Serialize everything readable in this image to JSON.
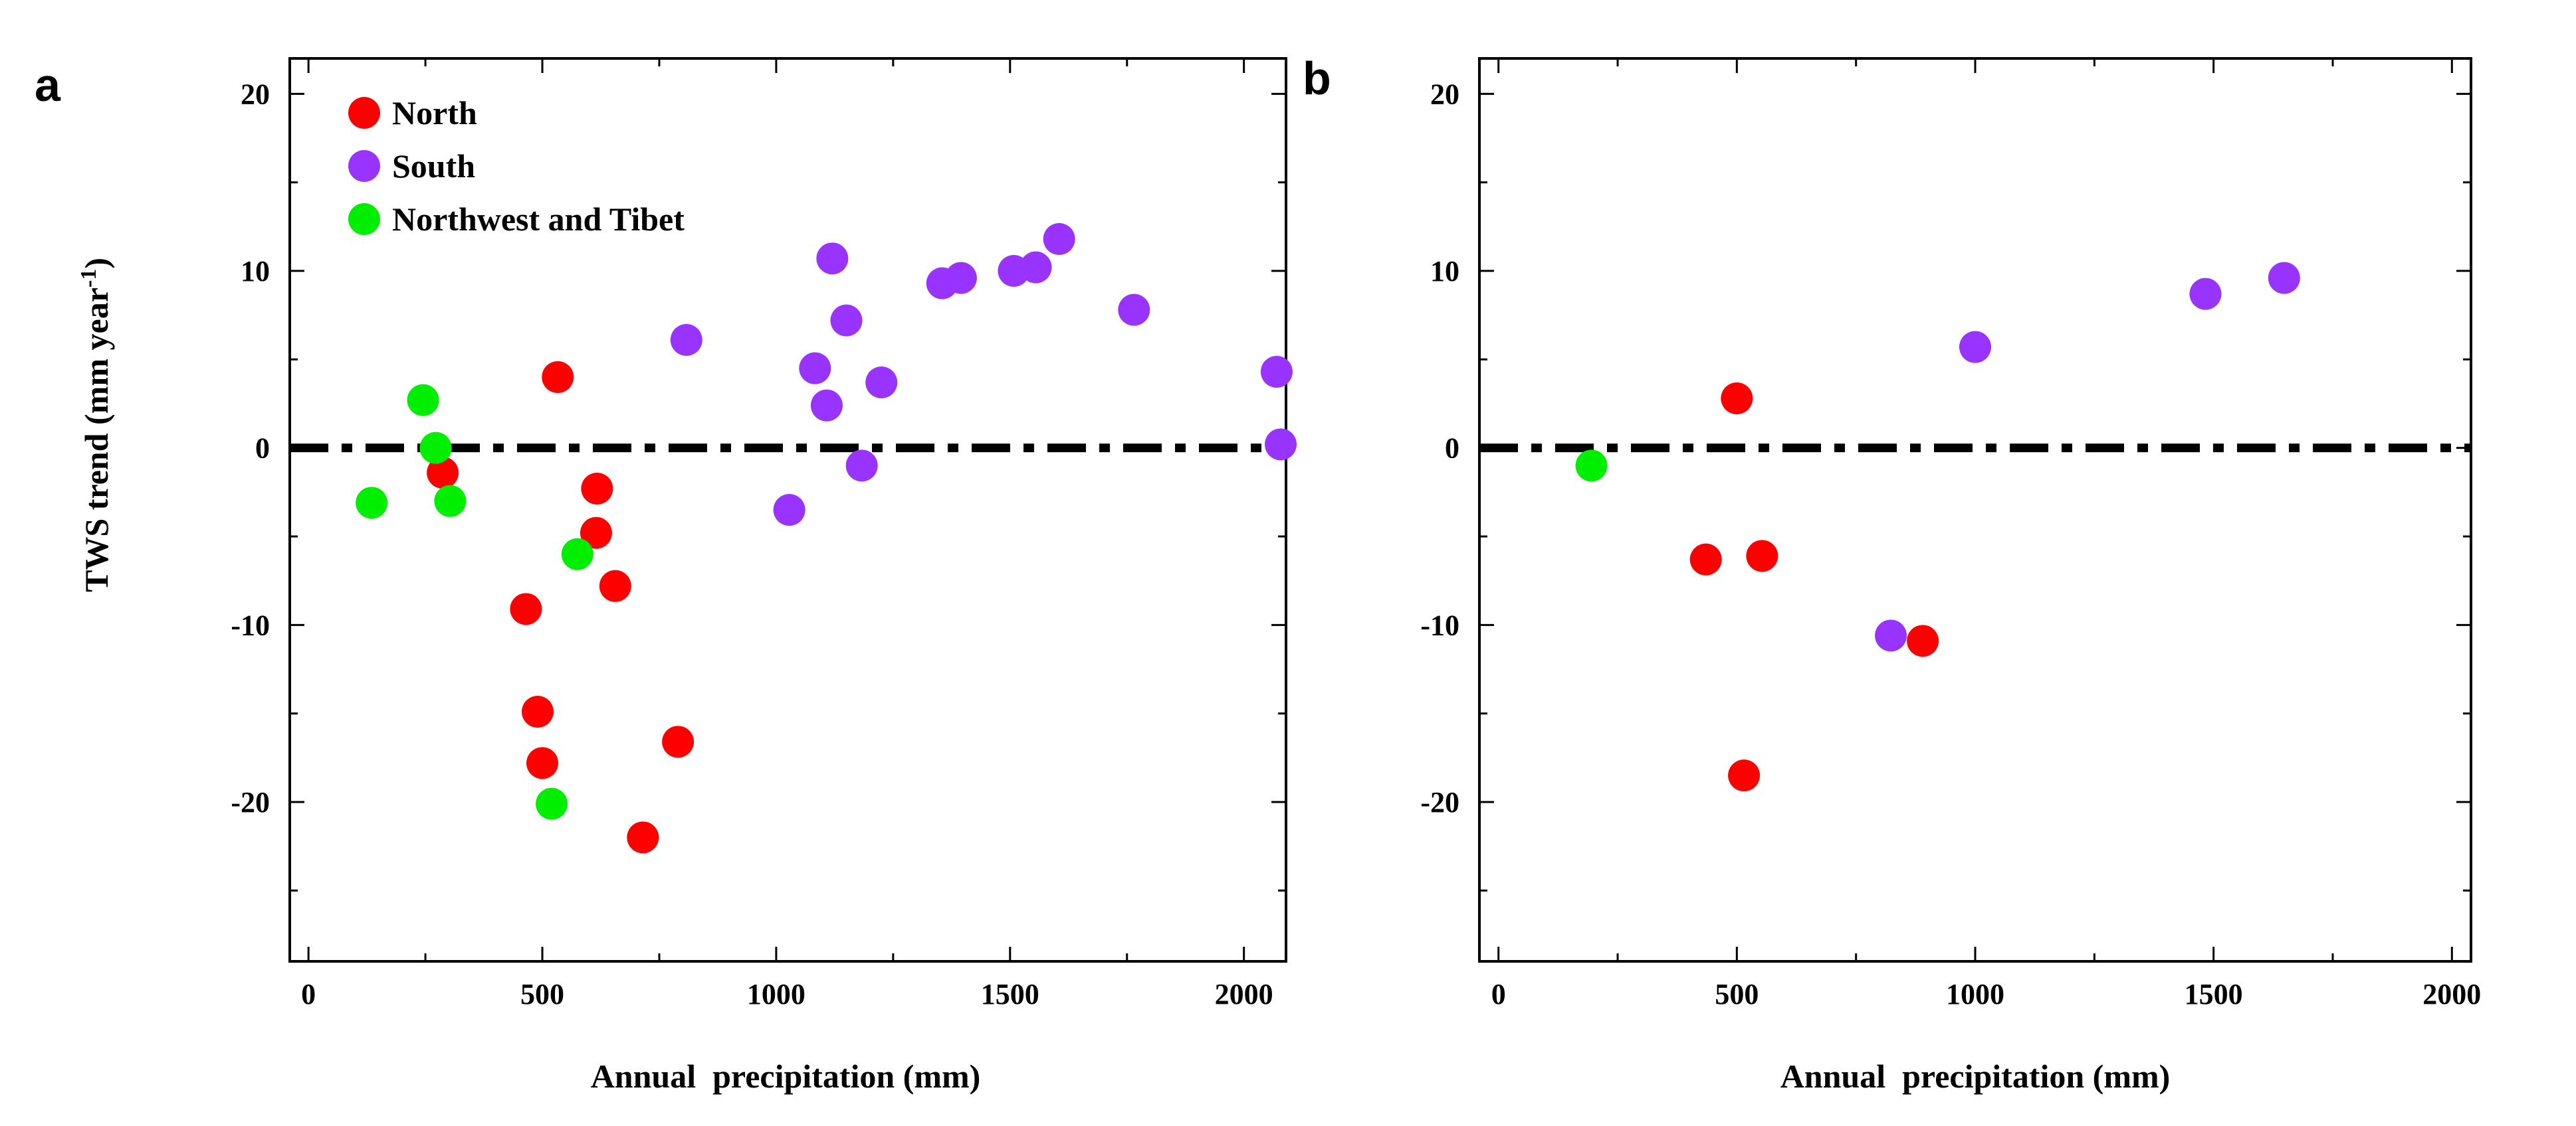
{
  "y_axis_label": {
    "main": "TWS trend (mm year",
    "sup": "-1",
    "end": ")"
  },
  "colors": {
    "North": "#ff0000",
    "South": "#9933ff",
    "Northwest and Tibet": "#00ee00"
  },
  "chart_data": [
    {
      "type": "scatter",
      "panel": "a",
      "xlabel": "Annual  precipitation (mm)",
      "ylabel": "TWS trend (mm year-1)",
      "xlim": [
        -40,
        2090
      ],
      "ylim": [
        -29,
        22
      ],
      "xticks": [
        0,
        500,
        1000,
        1500,
        2000
      ],
      "yticks": [
        -20,
        -10,
        0,
        10,
        20
      ],
      "reference_line": {
        "y": 0,
        "style": "dash-dot"
      },
      "legend": {
        "position": "top-left",
        "entries": [
          "North",
          "South",
          "Northwest and Tibet"
        ]
      },
      "series": [
        {
          "name": "North",
          "points": [
            [
              533,
              4.0
            ],
            [
              287,
              -1.4
            ],
            [
              617,
              -2.3
            ],
            [
              615,
              -4.8
            ],
            [
              656,
              -7.8
            ],
            [
              465,
              -9.1
            ],
            [
              490,
              -14.9
            ],
            [
              500,
              -17.8
            ],
            [
              790,
              -16.6
            ],
            [
              715,
              -22.0
            ]
          ]
        },
        {
          "name": "South",
          "points": [
            [
              808,
              6.1
            ],
            [
              1028,
              -3.5
            ],
            [
              1083,
              4.5
            ],
            [
              1108,
              2.4
            ],
            [
              1120,
              10.7
            ],
            [
              1150,
              7.2
            ],
            [
              1183,
              -1.0
            ],
            [
              1225,
              3.7
            ],
            [
              1355,
              9.3
            ],
            [
              1395,
              9.6
            ],
            [
              1508,
              10.0
            ],
            [
              1555,
              10.2
            ],
            [
              1605,
              11.8
            ],
            [
              1765,
              7.8
            ],
            [
              2070,
              4.3
            ],
            [
              2082,
              0.2
            ]
          ]
        },
        {
          "name": "Northwest and Tibet",
          "points": [
            [
              135,
              -3.1
            ],
            [
              245,
              2.7
            ],
            [
              272,
              0.0
            ],
            [
              303,
              -3.0
            ],
            [
              575,
              -6.0
            ],
            [
              520,
              -20.1
            ]
          ]
        }
      ]
    },
    {
      "type": "scatter",
      "panel": "b",
      "xlabel": "Annual  precipitation (mm)",
      "ylabel": "",
      "xlim": [
        -40,
        2040
      ],
      "ylim": [
        -29,
        22
      ],
      "xticks": [
        0,
        500,
        1000,
        1500,
        2000
      ],
      "yticks": [
        -20,
        -10,
        0,
        10,
        20
      ],
      "reference_line": {
        "y": 0,
        "style": "dash-dot"
      },
      "series": [
        {
          "name": "North",
          "points": [
            [
              500,
              2.8
            ],
            [
              435,
              -6.3
            ],
            [
              553,
              -6.1
            ],
            [
              890,
              -10.9
            ],
            [
              515,
              -18.5
            ]
          ]
        },
        {
          "name": "South",
          "points": [
            [
              1000,
              5.7
            ],
            [
              823,
              -10.6
            ],
            [
              1483,
              8.7
            ],
            [
              1648,
              9.6
            ]
          ]
        },
        {
          "name": "Northwest and Tibet",
          "points": [
            [
              195,
              -1.0
            ]
          ]
        }
      ]
    }
  ]
}
